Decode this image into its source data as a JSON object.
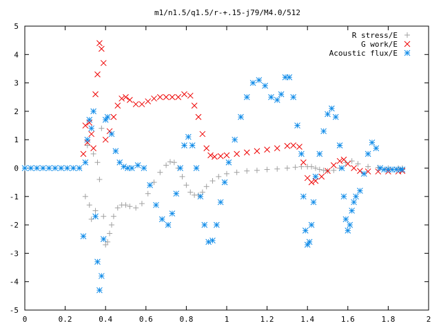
{
  "chart_data": {
    "type": "scatter",
    "title": "m1/n1.5/q1.5/r-+.15-j79/M4.0/512",
    "xlabel": "",
    "ylabel": "",
    "xlim": [
      0,
      2
    ],
    "ylim": [
      -5,
      5
    ],
    "x_ticks": [
      0,
      0.2,
      0.4,
      0.6,
      0.8,
      1,
      1.2,
      1.4,
      1.6,
      1.8,
      2
    ],
    "x_tick_labels": [
      "0",
      "0.2",
      "0.4",
      "0.6",
      "0.8",
      "1",
      "1.2",
      "1.4",
      "1.6",
      "1.8",
      "2"
    ],
    "y_ticks": [
      -5,
      -4,
      -3,
      -2,
      -1,
      0,
      1,
      2,
      3,
      4,
      5
    ],
    "y_tick_labels": [
      "-5",
      "-4",
      "-3",
      "-2",
      "-1",
      "0",
      "1",
      "2",
      "3",
      "4",
      "5"
    ],
    "grid": false,
    "legend_position": "top-right",
    "series": [
      {
        "name": "R stress/E",
        "marker": "plus",
        "color": "#a0a0a0",
        "x": [
          0.3,
          0.31,
          0.32,
          0.33,
          0.34,
          0.35,
          0.36,
          0.37,
          0.38,
          0.39,
          0.4,
          0.41,
          0.42,
          0.43,
          0.44,
          0.46,
          0.48,
          0.5,
          0.52,
          0.55,
          0.58,
          0.61,
          0.64,
          0.67,
          0.7,
          0.72,
          0.74,
          0.76,
          0.78,
          0.8,
          0.82,
          0.84,
          0.86,
          0.88,
          0.9,
          0.93,
          0.96,
          1.0,
          1.05,
          1.1,
          1.15,
          1.2,
          1.25,
          1.3,
          1.34,
          1.37,
          1.4,
          1.42,
          1.44,
          1.46,
          1.48,
          1.5,
          1.53,
          1.56,
          1.59,
          1.62,
          1.65,
          1.7,
          1.75,
          1.8,
          1.85,
          1.87
        ],
        "y": [
          -1.0,
          0.8,
          -1.3,
          -1.8,
          0.5,
          -1.5,
          0.2,
          -0.4,
          1.4,
          -1.7,
          -2.7,
          -2.6,
          -2.3,
          -2.0,
          -1.7,
          -1.4,
          -1.3,
          -1.3,
          -1.35,
          -1.4,
          -1.25,
          -0.9,
          -0.5,
          -0.15,
          0.1,
          0.22,
          0.2,
          0.0,
          -0.3,
          -0.6,
          -0.85,
          -0.95,
          -0.95,
          -0.85,
          -0.65,
          -0.45,
          -0.3,
          -0.2,
          -0.15,
          -0.1,
          -0.08,
          -0.05,
          -0.03,
          0.0,
          0.03,
          0.05,
          0.05,
          0.05,
          0.0,
          -0.05,
          -0.08,
          -0.1,
          -0.08,
          0.0,
          0.2,
          0.25,
          0.15,
          0.05,
          0.02,
          0.0,
          0.0,
          0.0
        ]
      },
      {
        "name": "G work/E",
        "marker": "cross",
        "color": "#ee0000",
        "x": [
          0.29,
          0.3,
          0.31,
          0.32,
          0.33,
          0.34,
          0.35,
          0.36,
          0.37,
          0.38,
          0.39,
          0.4,
          0.42,
          0.44,
          0.46,
          0.48,
          0.5,
          0.52,
          0.55,
          0.58,
          0.61,
          0.64,
          0.67,
          0.7,
          0.73,
          0.76,
          0.79,
          0.82,
          0.84,
          0.86,
          0.88,
          0.9,
          0.92,
          0.94,
          0.97,
          1.0,
          1.05,
          1.1,
          1.15,
          1.2,
          1.25,
          1.3,
          1.33,
          1.36,
          1.38,
          1.4,
          1.42,
          1.44,
          1.47,
          1.5,
          1.53,
          1.56,
          1.58,
          1.6,
          1.63,
          1.66,
          1.7,
          1.75,
          1.8,
          1.85,
          1.87
        ],
        "y": [
          0.5,
          1.5,
          0.9,
          1.6,
          1.2,
          0.7,
          2.6,
          3.3,
          4.4,
          4.2,
          3.7,
          1.0,
          1.3,
          1.8,
          2.2,
          2.45,
          2.5,
          2.4,
          2.25,
          2.25,
          2.35,
          2.45,
          2.5,
          2.5,
          2.5,
          2.5,
          2.6,
          2.55,
          2.2,
          1.8,
          1.2,
          0.7,
          0.45,
          0.4,
          0.42,
          0.45,
          0.5,
          0.55,
          0.6,
          0.65,
          0.7,
          0.78,
          0.8,
          0.75,
          0.2,
          -0.35,
          -0.5,
          -0.45,
          -0.3,
          -0.1,
          0.1,
          0.25,
          0.3,
          0.15,
          0.0,
          -0.1,
          -0.12,
          -0.12,
          -0.12,
          -0.12,
          -0.1
        ]
      },
      {
        "name": "Acoustic flux/E",
        "marker": "star",
        "color": "#0f8be8",
        "x": [
          0.0,
          0.03,
          0.06,
          0.09,
          0.12,
          0.15,
          0.18,
          0.21,
          0.24,
          0.27,
          0.29,
          0.3,
          0.31,
          0.32,
          0.33,
          0.34,
          0.35,
          0.36,
          0.37,
          0.38,
          0.39,
          0.4,
          0.41,
          0.43,
          0.45,
          0.47,
          0.49,
          0.51,
          0.53,
          0.56,
          0.59,
          0.62,
          0.65,
          0.68,
          0.71,
          0.73,
          0.75,
          0.77,
          0.79,
          0.81,
          0.83,
          0.85,
          0.87,
          0.89,
          0.91,
          0.93,
          0.95,
          0.97,
          0.99,
          1.01,
          1.04,
          1.07,
          1.1,
          1.13,
          1.16,
          1.19,
          1.22,
          1.25,
          1.27,
          1.29,
          1.31,
          1.33,
          1.35,
          1.37,
          1.38,
          1.39,
          1.4,
          1.41,
          1.42,
          1.43,
          1.44,
          1.46,
          1.48,
          1.5,
          1.52,
          1.54,
          1.56,
          1.57,
          1.58,
          1.59,
          1.6,
          1.61,
          1.62,
          1.63,
          1.64,
          1.66,
          1.68,
          1.7,
          1.72,
          1.74,
          1.76,
          1.78,
          1.8,
          1.82,
          1.84,
          1.86,
          1.87
        ],
        "y": [
          0.0,
          0.0,
          0.0,
          0.0,
          0.0,
          0.0,
          0.0,
          0.0,
          0.0,
          0.0,
          -2.4,
          0.2,
          1.0,
          1.7,
          1.4,
          2.0,
          -1.7,
          -3.3,
          -4.3,
          -3.8,
          -2.5,
          1.7,
          1.8,
          1.2,
          0.6,
          0.2,
          0.05,
          0.0,
          0.0,
          0.1,
          0.0,
          -0.6,
          -1.3,
          -1.8,
          -2.0,
          -1.6,
          -0.9,
          0.0,
          0.8,
          1.1,
          0.8,
          0.0,
          -1.0,
          -2.0,
          -2.6,
          -2.55,
          -2.0,
          -1.2,
          -0.5,
          0.2,
          1.0,
          1.8,
          2.5,
          3.0,
          3.1,
          2.9,
          2.5,
          2.4,
          2.6,
          3.2,
          3.2,
          2.5,
          1.5,
          0.5,
          -1.0,
          -2.2,
          -2.7,
          -2.6,
          -2.0,
          -1.2,
          -0.3,
          0.5,
          1.3,
          1.9,
          2.1,
          1.8,
          0.8,
          0.0,
          -1.0,
          -1.8,
          -2.2,
          -2.0,
          -1.5,
          -1.2,
          -1.0,
          -0.8,
          -0.2,
          0.5,
          0.9,
          0.7,
          0.0,
          -0.05,
          -0.05,
          -0.05,
          -0.05,
          -0.05,
          -0.05
        ]
      }
    ]
  }
}
